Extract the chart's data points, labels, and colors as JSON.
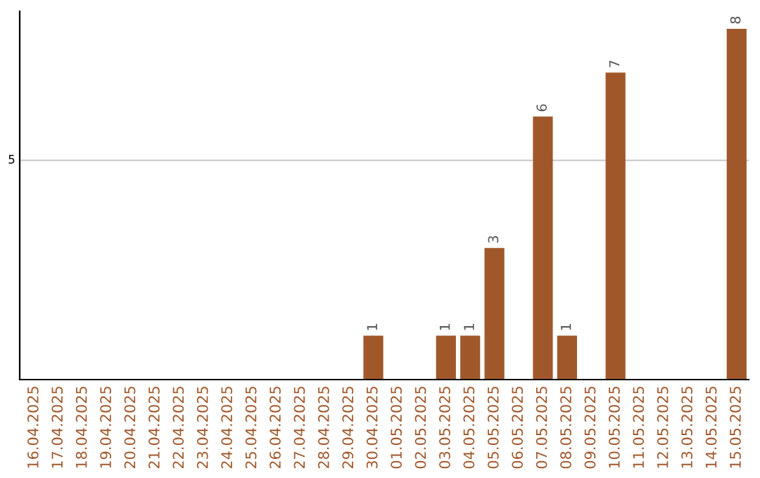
{
  "chart_data": {
    "type": "bar",
    "categories": [
      "16.04.2025",
      "17.04.2025",
      "18.04.2025",
      "19.04.2025",
      "20.04.2025",
      "21.04.2025",
      "22.04.2025",
      "23.04.2025",
      "24.04.2025",
      "25.04.2025",
      "26.04.2025",
      "27.04.2025",
      "28.04.2025",
      "29.04.2025",
      "30.04.2025",
      "01.05.2025",
      "02.05.2025",
      "03.05.2025",
      "04.05.2025",
      "05.05.2025",
      "06.05.2025",
      "07.05.2025",
      "08.05.2025",
      "09.05.2025",
      "10.05.2025",
      "11.05.2025",
      "12.05.2025",
      "13.05.2025",
      "14.05.2025",
      "15.05.2025"
    ],
    "values": [
      null,
      null,
      null,
      null,
      null,
      null,
      null,
      null,
      null,
      null,
      null,
      null,
      null,
      null,
      1,
      null,
      null,
      1,
      1,
      3,
      null,
      6,
      1,
      null,
      7,
      null,
      null,
      null,
      null,
      8
    ],
    "data_labels": true,
    "color": "#a0582b",
    "ref_lines": [
      {
        "axis": "y",
        "value": 5,
        "label": "5",
        "color": "#cccccc"
      }
    ]
  }
}
